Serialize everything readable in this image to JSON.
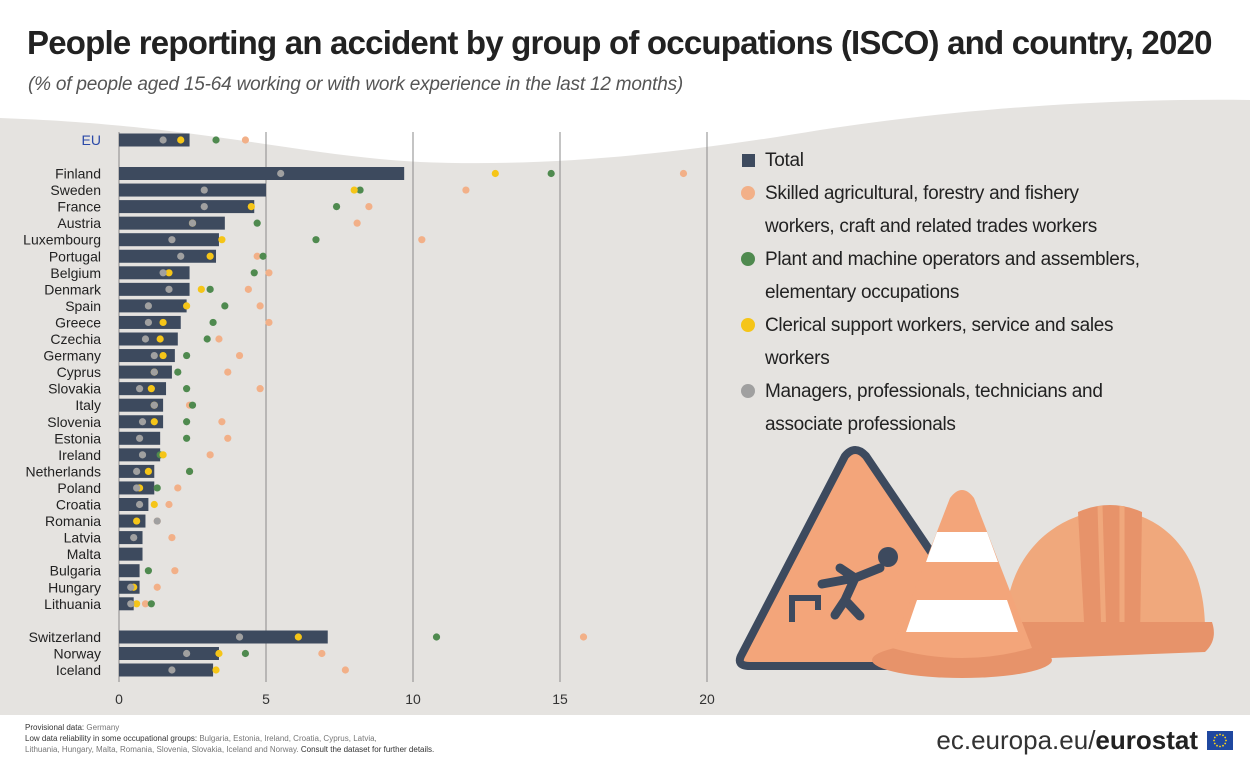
{
  "title": "People reporting an accident by group of occupations (ISCO) and country, 2020",
  "subtitle": "(% of people aged 15-64 working or with work experience in the last 12 months)",
  "legend": [
    {
      "label": "Total",
      "color": "#3d4a5e",
      "shape": "square"
    },
    {
      "label": "Skilled agricultural, forestry and fishery workers, craft and related trades workers",
      "color": "#f2b088",
      "shape": "circle"
    },
    {
      "label": "Plant and machine operators and assemblers, elementary occupations",
      "color": "#4f8a4f",
      "shape": "circle"
    },
    {
      "label": "Clerical support workers, service and sales workers",
      "color": "#f5c518",
      "shape": "circle"
    },
    {
      "label": "Managers, professionals, technicians and associate professionals",
      "color": "#a0a0a0",
      "shape": "circle"
    }
  ],
  "chart_data": {
    "type": "bar",
    "orientation": "horizontal",
    "x_range": [
      0,
      20
    ],
    "x_ticks": [
      "0",
      "5",
      "10",
      "15",
      "20"
    ],
    "grid": true,
    "categories": [
      "EU",
      "Finland",
      "Sweden",
      "France",
      "Austria",
      "Luxembourg",
      "Portugal",
      "Belgium",
      "Denmark",
      "Spain",
      "Greece",
      "Czechia",
      "Germany",
      "Cyprus",
      "Slovakia",
      "Italy",
      "Slovenia",
      "Estonia",
      "Ireland",
      "Netherlands",
      "Poland",
      "Croatia",
      "Romania",
      "Latvia",
      "Malta",
      "Bulgaria",
      "Hungary",
      "Lithuania",
      "Switzerland",
      "Norway",
      "Iceland"
    ],
    "series": [
      {
        "name": "Total",
        "style": "bar",
        "color": "#3d4a5e",
        "values": [
          2.4,
          9.7,
          5.0,
          4.6,
          3.6,
          3.4,
          3.3,
          2.4,
          2.4,
          2.3,
          2.1,
          2.0,
          1.9,
          1.8,
          1.6,
          1.5,
          1.5,
          1.4,
          1.4,
          1.2,
          1.2,
          1.0,
          0.9,
          0.8,
          0.8,
          0.7,
          0.7,
          0.5,
          7.1,
          3.4,
          3.2
        ]
      },
      {
        "name": "Skilled agricultural, forestry and fishery workers, craft and related trades workers",
        "style": "dot",
        "color": "#f2b088",
        "values": [
          4.3,
          19.2,
          11.8,
          8.5,
          8.1,
          10.3,
          4.7,
          5.1,
          4.4,
          4.8,
          5.1,
          3.4,
          4.1,
          3.7,
          4.8,
          2.4,
          3.5,
          3.7,
          3.1,
          2.4,
          2.0,
          1.7,
          1.3,
          1.8,
          null,
          1.9,
          1.3,
          0.9,
          15.8,
          6.9,
          7.7
        ]
      },
      {
        "name": "Plant and machine operators and assemblers, elementary occupations",
        "style": "dot",
        "color": "#4f8a4f",
        "values": [
          3.3,
          14.7,
          8.2,
          7.4,
          4.7,
          6.7,
          4.9,
          4.6,
          3.1,
          3.6,
          3.2,
          3.0,
          2.3,
          2.0,
          2.3,
          2.5,
          2.3,
          2.3,
          1.4,
          2.4,
          1.3,
          null,
          null,
          null,
          null,
          1.0,
          null,
          1.1,
          10.8,
          4.3,
          null
        ]
      },
      {
        "name": "Clerical support workers, service and sales workers",
        "style": "dot",
        "color": "#f5c518",
        "values": [
          2.1,
          12.8,
          8.0,
          4.5,
          2.5,
          3.5,
          3.1,
          1.7,
          2.8,
          2.3,
          1.5,
          1.4,
          1.5,
          1.2,
          1.1,
          1.2,
          1.2,
          null,
          1.5,
          1.0,
          0.7,
          1.2,
          0.6,
          null,
          null,
          null,
          0.5,
          0.6,
          6.1,
          3.4,
          3.3
        ]
      },
      {
        "name": "Managers, professionals, technicians and associate professionals",
        "style": "dot",
        "color": "#a0a0a0",
        "values": [
          1.5,
          5.5,
          2.9,
          2.9,
          2.5,
          1.8,
          2.1,
          1.5,
          1.7,
          1.0,
          1.0,
          0.9,
          1.2,
          1.2,
          0.7,
          1.2,
          0.8,
          0.7,
          0.8,
          0.6,
          0.6,
          0.7,
          1.3,
          0.5,
          null,
          null,
          0.4,
          0.4,
          4.1,
          2.3,
          1.8
        ]
      }
    ]
  },
  "footer": {
    "provisional_label": "Provisional data:",
    "provisional_value": "Germany",
    "lowrel_label": "Low data reliability in some occupational groups:",
    "lowrel_value_1": "Bulgaria, Estonia, Ireland, Croatia, Cyprus, Latvia,",
    "lowrel_value_2": "Lithuania, Hungary, Malta, Romania, Slovenia, Slovakia, Iceland and Norway.",
    "consult": "Consult the dataset for further details.",
    "brand_prefix": "ec.europa.eu/",
    "brand_name": "eurostat"
  }
}
